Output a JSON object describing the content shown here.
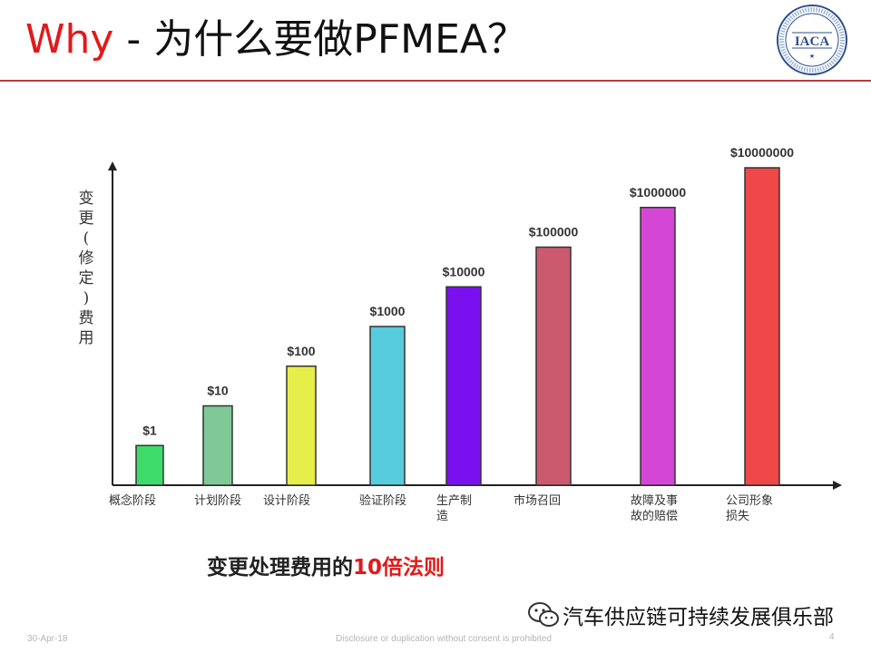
{
  "header": {
    "title_why": "Why",
    "title_rest": " - 为什么要做PFMEA？",
    "logo_text": "IACA"
  },
  "chart_data": {
    "type": "bar",
    "ylabel": "变更(修定)费用",
    "scale": "log",
    "categories": [
      "概念阶段",
      "计划阶段",
      "设计阶段",
      "验证阶段",
      "生产制造",
      "市场召回",
      "故障及事故的赔偿",
      "公司形象损失"
    ],
    "category_label_lines": [
      [
        "概念阶段"
      ],
      [
        "计划阶段"
      ],
      [
        "设计阶段"
      ],
      [
        "验证阶段"
      ],
      [
        "生产制",
        "造"
      ],
      [
        "市场召回"
      ],
      [
        "故障及事",
        "故的赔偿"
      ],
      [
        "公司形象",
        "损失"
      ]
    ],
    "values": [
      1,
      10,
      100,
      1000,
      10000,
      100000,
      1000000,
      10000000
    ],
    "value_labels": [
      "$1",
      "$10",
      "$100",
      "$1000",
      "$10000",
      "$100000",
      "$1000000",
      "$10000000"
    ],
    "colors": [
      "#3ddc6a",
      "#7fc996",
      "#e6ee49",
      "#56ccdc",
      "#7a10f0",
      "#cc5a6e",
      "#d447d4",
      "#f04848"
    ],
    "grid": false,
    "subtitle": "变更处理费用的",
    "subtitle_emphasis": "10倍法则"
  },
  "footer": {
    "date": "30-Apr-18",
    "note": "Disclosure or duplication without consent is prohibited",
    "page": "4",
    "wechat_label": "汽车供应链可持续发展俱乐部"
  }
}
